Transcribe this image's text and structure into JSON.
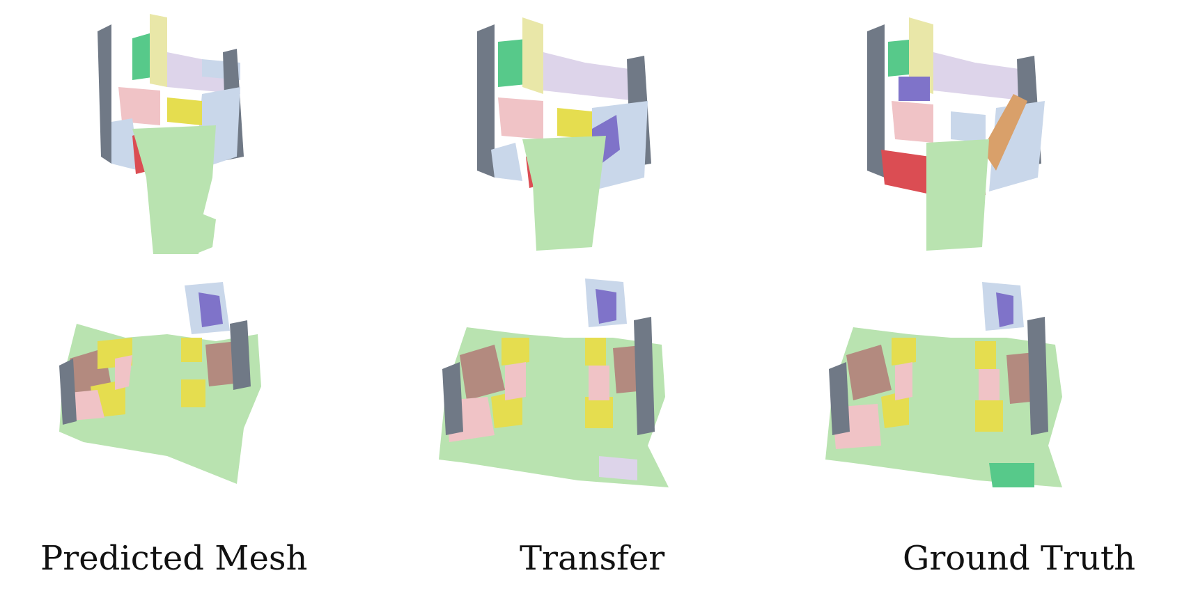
{
  "captions": {
    "predicted": "Predicted Mesh",
    "transfer": "Transfer",
    "ground_truth": "Ground Truth"
  },
  "palette": {
    "floor": "#b9e3b0",
    "wall": "#c9d7ea",
    "wall_shadow": "#707986",
    "cabinet": "#57c98a",
    "bookshelf": "#e9e7a8",
    "chair": "#e5dd4f",
    "table": "#f0c3c6",
    "door": "#db4d53",
    "window": "#ddd4ea",
    "picture": "#7f73c9",
    "bed": "#b38a7f",
    "blinds": "#d9a06a"
  }
}
